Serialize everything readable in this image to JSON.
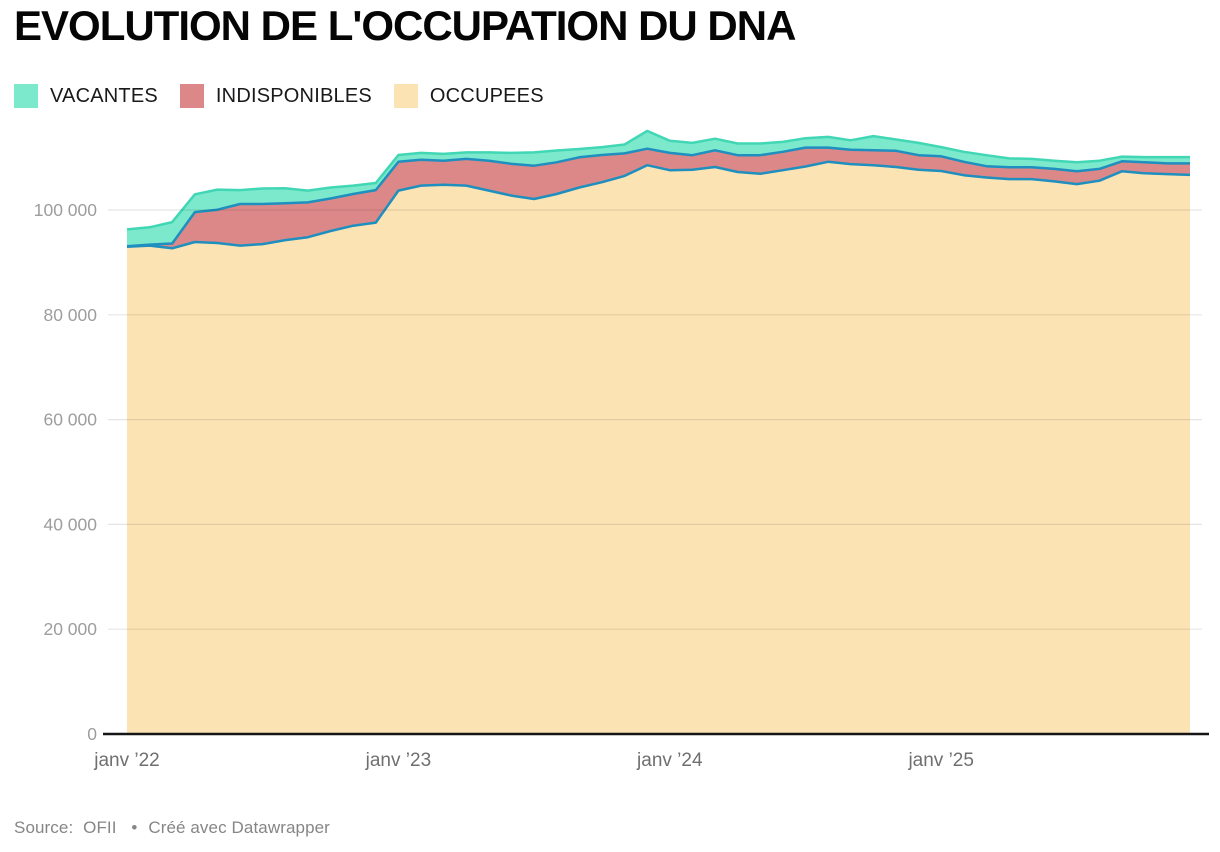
{
  "header": {
    "title": "EVOLUTION DE L'OCCUPATION DU DNA"
  },
  "legend": {
    "items": [
      {
        "id": "vacantes",
        "label": "VACANTES",
        "color": "#7ce8cc"
      },
      {
        "id": "indisponibles",
        "label": "INDISPONIBLES",
        "color": "#dd8888"
      },
      {
        "id": "occupees",
        "label": "OCCUPEES",
        "color": "#fce3b4"
      }
    ]
  },
  "footer": {
    "source_label": "Source:",
    "source_value": "OFII",
    "separator": "•",
    "credit": "Créé avec Datawrapper"
  },
  "chart_data": {
    "type": "area",
    "stacked": true,
    "grid": "horizontal",
    "legend_position": "top",
    "x": [
      "janv 2022",
      "févr 2022",
      "mars 2022",
      "avr 2022",
      "mai 2022",
      "juin 2022",
      "juil 2022",
      "août 2022",
      "sept 2022",
      "oct 2022",
      "nov 2022",
      "déc 2022",
      "janv 2023",
      "févr 2023",
      "mars 2023",
      "avr 2023",
      "mai 2023",
      "juin 2023",
      "juil 2023",
      "août 2023",
      "sept 2023",
      "oct 2023",
      "nov 2023",
      "déc 2023",
      "janv 2024",
      "févr 2024",
      "mars 2024",
      "avr 2024",
      "mai 2024",
      "juin 2024",
      "juil 2024",
      "août 2024",
      "sept 2024",
      "oct 2024",
      "nov 2024",
      "déc 2024",
      "janv 2025",
      "févr 2025",
      "mars 2025",
      "avr 2025",
      "mai 2025",
      "juin 2025",
      "juil 2025",
      "août 2025",
      "sept 2025",
      "oct 2025",
      "nov 2025",
      "déc 2025"
    ],
    "series": [
      {
        "name": "OCCUPEES",
        "color": "#fce3b4",
        "line_color": "#1e8fbe",
        "values": [
          93000,
          93200,
          92700,
          93900,
          93700,
          93200,
          93500,
          94250,
          94800,
          96000,
          97000,
          97600,
          103700,
          104650,
          104800,
          104650,
          103700,
          102750,
          102100,
          103050,
          104300,
          105300,
          106500,
          108550,
          107600,
          107700,
          108200,
          107250,
          106900,
          107600,
          108300,
          109200,
          108750,
          108550,
          108200,
          107700,
          107450,
          106650,
          106200,
          105900,
          105900,
          105450,
          104950,
          105600,
          107400,
          107000,
          106850,
          106700
        ]
      },
      {
        "name": "INDISPONIBLES",
        "color": "#dd8888",
        "line_color": "#1e8fbe",
        "values": [
          100,
          200,
          900,
          5700,
          6350,
          7950,
          7650,
          7050,
          6650,
          6200,
          6050,
          6200,
          5500,
          4950,
          4600,
          5100,
          5700,
          6050,
          6350,
          6050,
          5750,
          5200,
          4300,
          3150,
          3300,
          2750,
          3200,
          3200,
          3550,
          3500,
          3600,
          2700,
          2750,
          2850,
          3100,
          2750,
          2800,
          2550,
          2150,
          2250,
          2250,
          2400,
          2450,
          2250,
          1900,
          2100,
          2050,
          2200
        ]
      },
      {
        "name": "VACANTES",
        "color": "#7ce8cc",
        "line_color": "#41d7b4",
        "values": [
          3200,
          3300,
          4100,
          3400,
          3850,
          2650,
          2950,
          2850,
          2250,
          2100,
          1600,
          1350,
          1300,
          1300,
          1300,
          1250,
          1600,
          2100,
          2550,
          2250,
          1600,
          1500,
          1700,
          3400,
          2300,
          2350,
          2200,
          2250,
          2250,
          1900,
          1800,
          2050,
          1800,
          2700,
          2150,
          2350,
          1750,
          1900,
          2100,
          1700,
          1600,
          1550,
          1700,
          1550,
          900,
          1000,
          1200,
          1200
        ]
      }
    ],
    "ylim": [
      0,
      115500
    ],
    "y_ticks": [
      0,
      20000,
      40000,
      60000,
      80000,
      100000
    ],
    "y_tick_labels": [
      "0",
      "20 000",
      "40 000",
      "60 000",
      "80 000",
      "100 000"
    ],
    "x_tick_indices": [
      0,
      12,
      24,
      36
    ],
    "x_tick_labels": [
      "janv ’22",
      "janv ’23",
      "janv ’24",
      "janv ’25"
    ]
  }
}
